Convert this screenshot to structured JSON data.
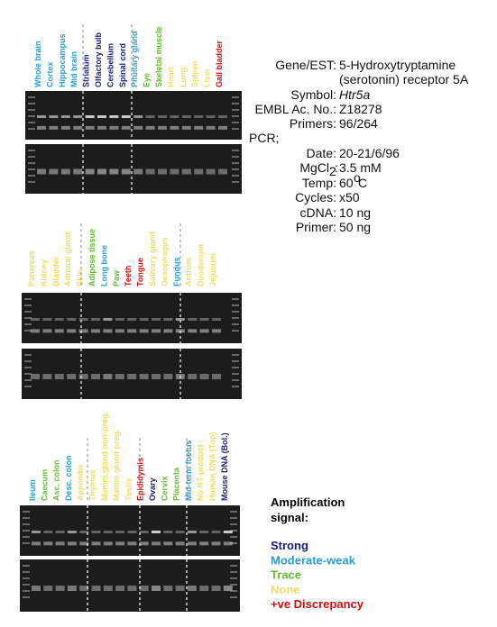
{
  "panels": [
    {
      "lanes": [
        {
          "label": "Whole brain",
          "color": "#2a9fd6"
        },
        {
          "label": "Cortex",
          "color": "#2a9fd6"
        },
        {
          "label": "Hippocampus",
          "color": "#2a9fd6"
        },
        {
          "label": "Mid brain",
          "color": "#2a9fd6"
        },
        {
          "label": "Striatum",
          "color": "#1a1a80"
        },
        {
          "label": "Olfactory bulb",
          "color": "#1a1a80"
        },
        {
          "label": "Cerebellum",
          "color": "#1a1a80"
        },
        {
          "label": "Spinal cord",
          "color": "#1a1a80"
        },
        {
          "label": "Pituitary gland",
          "color": "#2a9fd6"
        },
        {
          "label": "Eye",
          "color": "#66bb33"
        },
        {
          "label": "Skeletal muscle",
          "color": "#66bb33"
        },
        {
          "label": "Heart",
          "color": "#eedd66"
        },
        {
          "label": "Lung",
          "color": "#eedd66"
        },
        {
          "label": "Spleen",
          "color": "#eedd66"
        },
        {
          "label": "Liver",
          "color": "#eedd66"
        },
        {
          "label": "Gall bladder",
          "color": "#cc1111"
        }
      ]
    },
    {
      "lanes": [
        {
          "label": "Pancreas",
          "color": "#eedd66"
        },
        {
          "label": "Kidney",
          "color": "#eedd66"
        },
        {
          "label": "Bladder",
          "color": "#eedd66"
        },
        {
          "label": "Adrenal gland",
          "color": "#eedd66"
        },
        {
          "label": "Skin",
          "color": "#eedd66"
        },
        {
          "label": "Adipose tissue",
          "color": "#66bb33"
        },
        {
          "label": "Long bone",
          "color": "#2a9fd6"
        },
        {
          "label": "Paw",
          "color": "#66bb33"
        },
        {
          "label": "Teeth",
          "color": "#cc1111"
        },
        {
          "label": "Tongue",
          "color": "#cc1111"
        },
        {
          "label": "Salivary gland",
          "color": "#eedd66"
        },
        {
          "label": "Oesophagus",
          "color": "#eedd66"
        },
        {
          "label": "Fundus",
          "color": "#2a9fd6"
        },
        {
          "label": "Antrum",
          "color": "#eedd66"
        },
        {
          "label": "Duodenum",
          "color": "#eedd66"
        },
        {
          "label": "Jejunum",
          "color": "#eedd66"
        }
      ]
    },
    {
      "lanes": [
        {
          "label": "Ileum",
          "color": "#2a9fd6"
        },
        {
          "label": "Caecum",
          "color": "#66bb33"
        },
        {
          "label": "Asc. colon",
          "color": "#66bb33"
        },
        {
          "label": "Desc. colon",
          "color": "#2a9fd6"
        },
        {
          "label": "Appendix",
          "color": "#eedd66"
        },
        {
          "label": "Thymus",
          "color": "#eedd66"
        },
        {
          "label": "Mamm.gland non-preg.",
          "color": "#eedd66"
        },
        {
          "label": "Mamm.gland preg.",
          "color": "#eedd66"
        },
        {
          "label": "Testis",
          "color": "#eedd66"
        },
        {
          "label": "Epididymis",
          "color": "#cc1111"
        },
        {
          "label": "Ovary",
          "color": "#1a1a80"
        },
        {
          "label": "Cervix",
          "color": "#66bb33"
        },
        {
          "label": "Placenta",
          "color": "#66bb33"
        },
        {
          "label": "Mid-term foetus",
          "color": "#2a9fd6"
        },
        {
          "label": "No RT product",
          "color": "#eedd66"
        },
        {
          "label": "Human DNA (Top)",
          "color": "#eedd66"
        },
        {
          "label": "Mouse DNA (Bol.)",
          "color": "#1a1a80"
        }
      ]
    }
  ],
  "info": {
    "gene_key": "Gene/EST:",
    "gene_lines": [
      "5-Hydroxytryptamine",
      "(serotonin) receptor 5A"
    ],
    "symbol_key": "Symbol:",
    "symbol": "Htr5a",
    "embl_key": "EMBL Ac. No.:",
    "embl": "Z18278",
    "primers_key": "Primers:",
    "primers": "96/264",
    "pcr": "PCR;",
    "date_key": "Date:",
    "date": "20-21/6/96",
    "mgcl_key": "MgCl",
    "mgcl_sub": "2",
    "mgcl_colon": ":",
    "mgcl": "3.5 mM",
    "temp_key": "Temp:",
    "temp": "60",
    "temp_sup": "o",
    "temp_unit": "C",
    "cycles_key": "Cycles:",
    "cycles": "x50",
    "cdna_key": "cDNA:",
    "cdna": "10 ng",
    "primer_key": "Primer:",
    "primer": "50 ng"
  },
  "legend": {
    "title_lines": [
      "Amplification",
      "signal:"
    ],
    "levels": [
      {
        "name": "Strong",
        "color": "#1a1a80"
      },
      {
        "name": "Moderate-weak",
        "color": "#2a9fd6"
      },
      {
        "name": "Trace",
        "color": "#66bb33"
      },
      {
        "name": "None",
        "color": "#eedd66"
      },
      {
        "name": "+ve Discrepancy",
        "color": "#cc1111"
      }
    ]
  }
}
